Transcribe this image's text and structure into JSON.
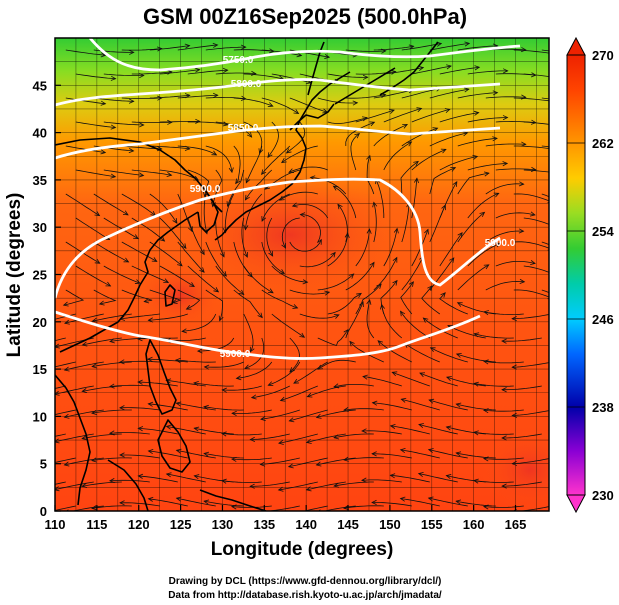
{
  "title": "GSM 00Z16Sep2025 (500.0hPa)",
  "x_axis": {
    "label": "Longitude (degrees)",
    "ticks": [
      "110",
      "115",
      "120",
      "125",
      "130",
      "135",
      "140",
      "145",
      "150",
      "155",
      "160",
      "165"
    ]
  },
  "y_axis": {
    "label": "Latitude  (degrees)",
    "ticks": [
      "0",
      "5",
      "10",
      "15",
      "20",
      "25",
      "30",
      "35",
      "40",
      "45"
    ]
  },
  "colorbar": {
    "ticks": [
      "230",
      "238",
      "246",
      "254",
      "262",
      "270"
    ],
    "min": 230,
    "max": 270
  },
  "contours": [
    {
      "id": "c5900_south",
      "label": "5900.0"
    },
    {
      "id": "c5900_north",
      "label": "5900.0"
    },
    {
      "id": "c5900_east",
      "label": "5900.0"
    },
    {
      "id": "c5850",
      "label": "5850.0"
    },
    {
      "id": "c5800",
      "label": "5800.0"
    },
    {
      "id": "c5750",
      "label": "5750.0"
    }
  ],
  "credits": {
    "line1": "Drawing by DCL (https://www.gfd-dennou.org/library/dcl/)",
    "line2": "Data from http://database.rish.kyoto-u.ac.jp/arch/jmadata/"
  },
  "colors": {
    "ramp": [
      "#ff33cc",
      "#8a00d4",
      "#0000aa",
      "#0066ff",
      "#00ccff",
      "#00ccaa",
      "#33cc33",
      "#99dd22",
      "#ffcc00",
      "#ff8800",
      "#ff4400",
      "#ee2200"
    ],
    "contour": "#ffffff",
    "coast": "#000000"
  }
}
